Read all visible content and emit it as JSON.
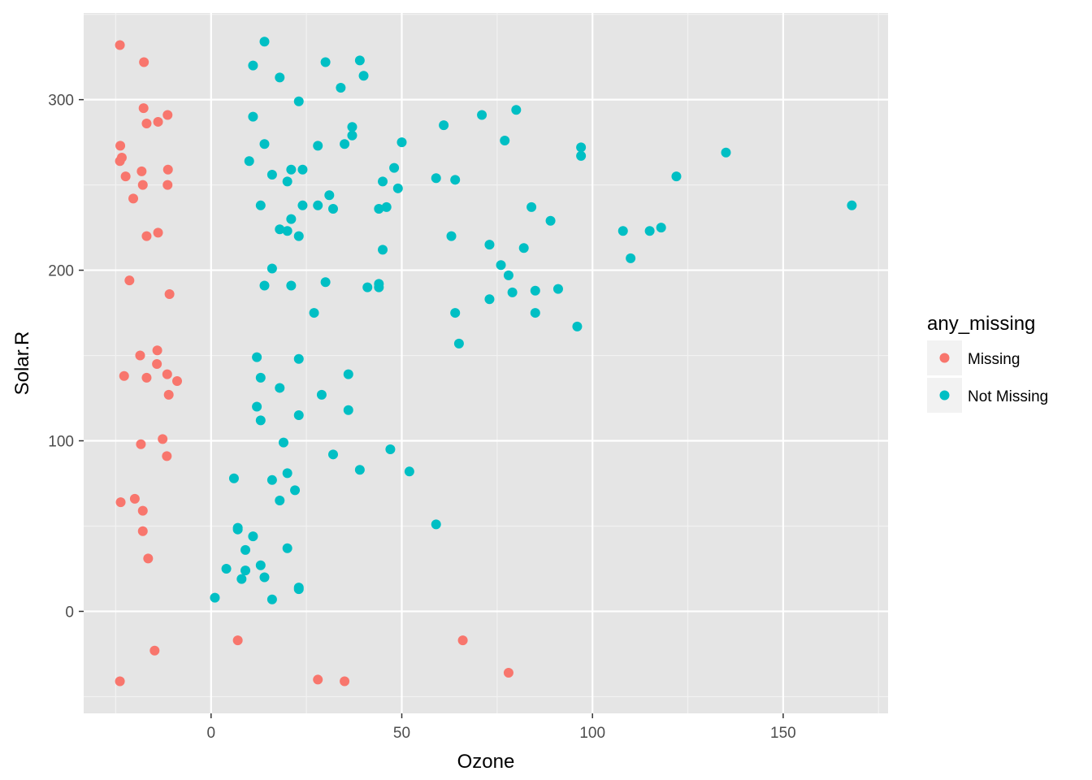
{
  "chart_data": {
    "type": "scatter",
    "title": "",
    "xlabel": "Ozone",
    "ylabel": "Solar.R",
    "xlim": [
      -33.4,
      177.5
    ],
    "ylim": [
      -59.8,
      350.8
    ],
    "x_ticks": [
      0,
      50,
      100,
      150
    ],
    "y_ticks": [
      0,
      100,
      200,
      300
    ],
    "grid": true,
    "legend": {
      "title": "any_missing",
      "placement": "right"
    },
    "series": [
      {
        "name": "Missing",
        "color": "#F8766D",
        "points": [
          [
            -23.9,
            332
          ],
          [
            -17.6,
            322
          ],
          [
            -17.7,
            295
          ],
          [
            -11.4,
            291
          ],
          [
            -13.9,
            287
          ],
          [
            -16.9,
            286
          ],
          [
            -23.8,
            273
          ],
          [
            -23.4,
            266
          ],
          [
            -23.9,
            264
          ],
          [
            -11.3,
            259
          ],
          [
            -18.2,
            258
          ],
          [
            -22.4,
            255
          ],
          [
            -17.9,
            250
          ],
          [
            -11.4,
            250
          ],
          [
            -20.4,
            242
          ],
          [
            -16.9,
            220
          ],
          [
            -13.9,
            222
          ],
          [
            -21.4,
            194
          ],
          [
            -10.9,
            186
          ],
          [
            -14.1,
            153
          ],
          [
            -18.6,
            150
          ],
          [
            -14.2,
            145
          ],
          [
            -22.8,
            138
          ],
          [
            -11.5,
            139
          ],
          [
            -16.9,
            137
          ],
          [
            -8.9,
            135
          ],
          [
            -11.1,
            127
          ],
          [
            -12.7,
            101
          ],
          [
            -18.4,
            98
          ],
          [
            -11.6,
            91
          ],
          [
            -20.0,
            66
          ],
          [
            -23.7,
            64
          ],
          [
            -17.9,
            59
          ],
          [
            -17.9,
            47
          ],
          [
            -16.5,
            31
          ],
          [
            -14.8,
            -23
          ],
          [
            -23.9,
            -41
          ],
          [
            7.0,
            -17
          ],
          [
            28.0,
            -40
          ],
          [
            35.0,
            -41
          ],
          [
            66.0,
            -17
          ],
          [
            78.0,
            -36
          ]
        ]
      },
      {
        "name": "Not Missing",
        "color": "#00BFC4",
        "points": [
          [
            14,
            334
          ],
          [
            39,
            323
          ],
          [
            30,
            322
          ],
          [
            11,
            320
          ],
          [
            18,
            313
          ],
          [
            40,
            314
          ],
          [
            34,
            307
          ],
          [
            23,
            299
          ],
          [
            80,
            294
          ],
          [
            71,
            291
          ],
          [
            11,
            290
          ],
          [
            61,
            285
          ],
          [
            37,
            284
          ],
          [
            37,
            279
          ],
          [
            77,
            276
          ],
          [
            35,
            274
          ],
          [
            50,
            275
          ],
          [
            14,
            274
          ],
          [
            28,
            273
          ],
          [
            97,
            272
          ],
          [
            97,
            267
          ],
          [
            135,
            269
          ],
          [
            10,
            264
          ],
          [
            21,
            259
          ],
          [
            24,
            259
          ],
          [
            48,
            260
          ],
          [
            16,
            256
          ],
          [
            122,
            255
          ],
          [
            59,
            254
          ],
          [
            64,
            253
          ],
          [
            20,
            252
          ],
          [
            45,
            252
          ],
          [
            49,
            248
          ],
          [
            31,
            244
          ],
          [
            168,
            238
          ],
          [
            13,
            238
          ],
          [
            24,
            238
          ],
          [
            28,
            238
          ],
          [
            32,
            236
          ],
          [
            44,
            236
          ],
          [
            46,
            237
          ],
          [
            84,
            237
          ],
          [
            21,
            230
          ],
          [
            89,
            229
          ],
          [
            118,
            225
          ],
          [
            18,
            224
          ],
          [
            20,
            223
          ],
          [
            108,
            223
          ],
          [
            115,
            223
          ],
          [
            23,
            220
          ],
          [
            63,
            220
          ],
          [
            73,
            215
          ],
          [
            82,
            213
          ],
          [
            45,
            212
          ],
          [
            110,
            207
          ],
          [
            76,
            203
          ],
          [
            16,
            201
          ],
          [
            78,
            197
          ],
          [
            30,
            193
          ],
          [
            14,
            191
          ],
          [
            21,
            191
          ],
          [
            44,
            192
          ],
          [
            41,
            190
          ],
          [
            44,
            190
          ],
          [
            91,
            189
          ],
          [
            85,
            188
          ],
          [
            79,
            187
          ],
          [
            73,
            183
          ],
          [
            27,
            175
          ],
          [
            64,
            175
          ],
          [
            85,
            175
          ],
          [
            96,
            167
          ],
          [
            65,
            157
          ],
          [
            12,
            149
          ],
          [
            23,
            148
          ],
          [
            36,
            139
          ],
          [
            13,
            137
          ],
          [
            18,
            131
          ],
          [
            29,
            127
          ],
          [
            12,
            120
          ],
          [
            36,
            118
          ],
          [
            23,
            115
          ],
          [
            13,
            112
          ],
          [
            19,
            99
          ],
          [
            47,
            95
          ],
          [
            32,
            92
          ],
          [
            39,
            83
          ],
          [
            52,
            82
          ],
          [
            20,
            81
          ],
          [
            6,
            78
          ],
          [
            16,
            77
          ],
          [
            22,
            71
          ],
          [
            18,
            65
          ],
          [
            59,
            51
          ],
          [
            7,
            49
          ],
          [
            7,
            48
          ],
          [
            11,
            44
          ],
          [
            20,
            37
          ],
          [
            9,
            36
          ],
          [
            13,
            27
          ],
          [
            4,
            25
          ],
          [
            9,
            24
          ],
          [
            8,
            19
          ],
          [
            14,
            20
          ],
          [
            23,
            14
          ],
          [
            23,
            13
          ],
          [
            1,
            8
          ],
          [
            16,
            7
          ]
        ]
      }
    ]
  }
}
